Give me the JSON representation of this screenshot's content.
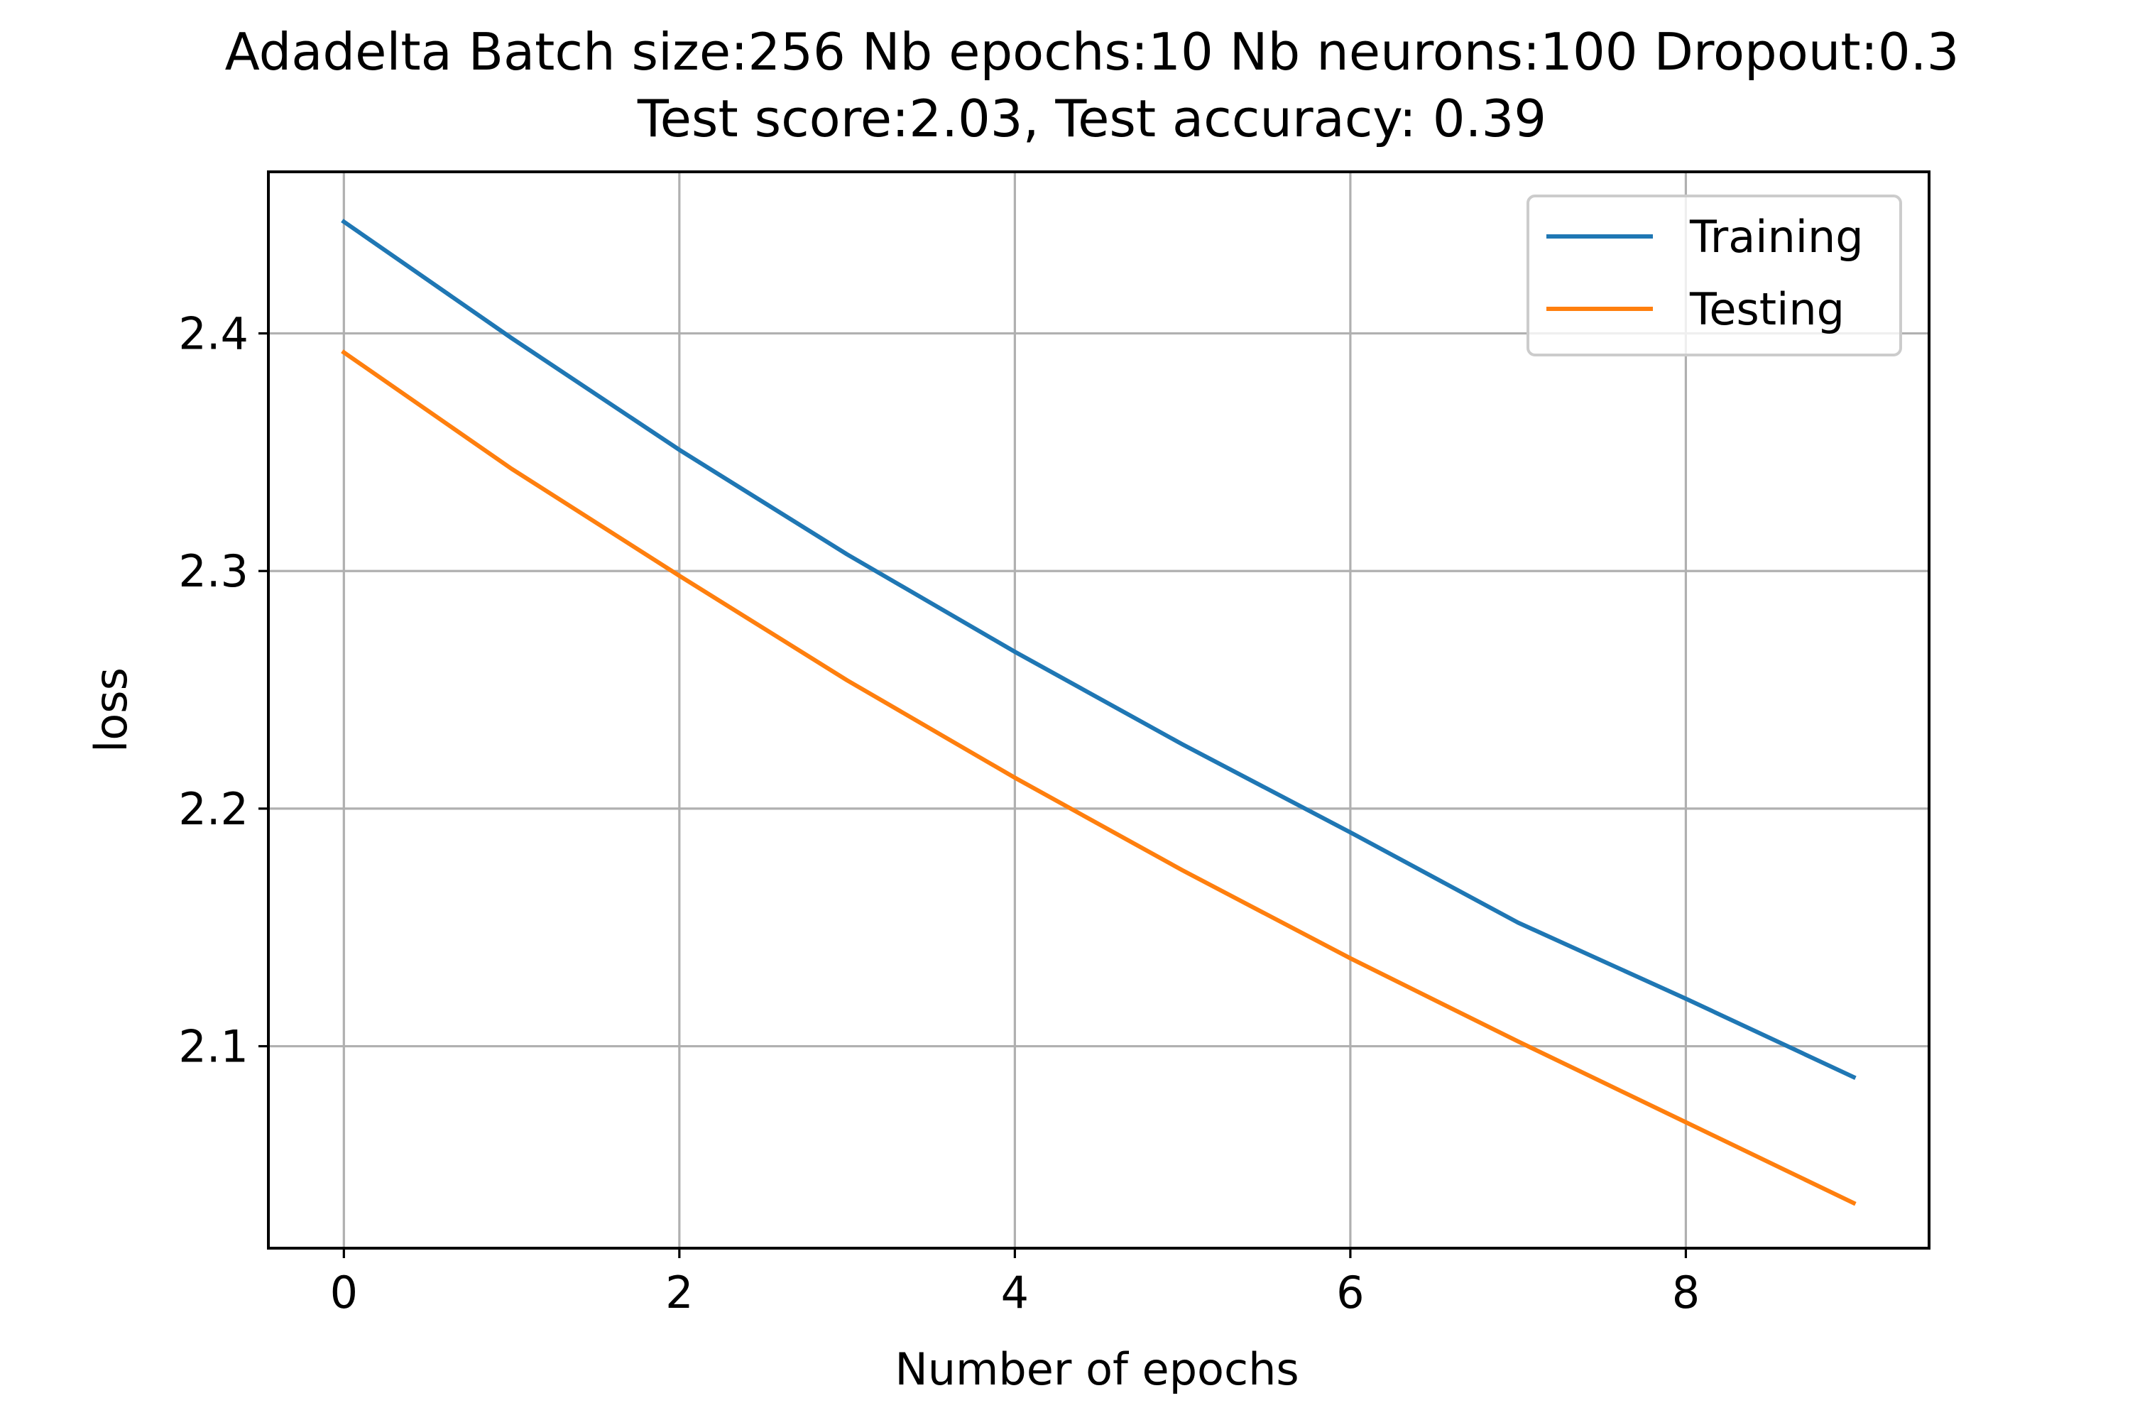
{
  "chart_data": {
    "type": "line",
    "title": "Adadelta Batch size:256 Nb epochs:10 Nb neurons:100 Dropout:0.3",
    "subtitle": "Test score:2.03, Test accuracy: 0.39",
    "xlabel": "Number of epochs",
    "ylabel": "loss",
    "x": [
      0,
      1,
      2,
      3,
      4,
      5,
      6,
      7,
      8,
      9
    ],
    "xlim": [
      -0.45,
      9.45
    ],
    "ylim": [
      2.015,
      2.468
    ],
    "xticks": [
      0,
      2,
      4,
      6,
      8
    ],
    "yticks": [
      2.1,
      2.2,
      2.3,
      2.4
    ],
    "grid": true,
    "legend_position": "top-right",
    "series": [
      {
        "name": "Training",
        "color": "#1f77b4",
        "values": [
          2.447,
          2.398,
          2.351,
          2.307,
          2.266,
          2.227,
          2.19,
          2.152,
          2.12,
          2.087
        ]
      },
      {
        "name": "Testing",
        "color": "#ff7f0e",
        "values": [
          2.392,
          2.343,
          2.298,
          2.254,
          2.213,
          2.174,
          2.137,
          2.102,
          2.068,
          2.034
        ]
      }
    ]
  }
}
